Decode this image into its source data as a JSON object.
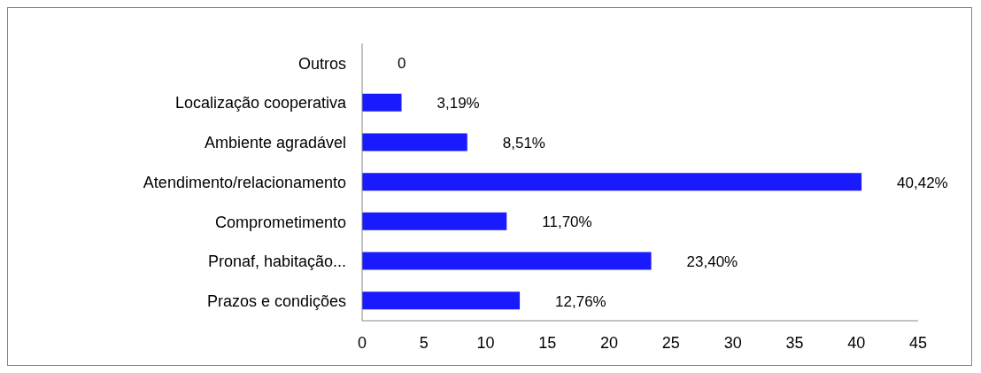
{
  "chart_data": {
    "type": "bar",
    "orientation": "horizontal",
    "categories": [
      "Outros",
      "Localização cooperativa",
      "Ambiente agradável",
      "Atendimento/relacionamento",
      "Comprometimento ",
      "Pronaf, habitação...",
      "Prazos e condições"
    ],
    "values": [
      0,
      3.19,
      8.51,
      40.42,
      11.7,
      23.4,
      12.76
    ],
    "value_labels": [
      "0",
      "3,19%",
      "8,51%",
      "40,42%",
      "11,70%",
      "23,40%",
      "12,76%"
    ],
    "color": "#1a1aff",
    "xlim": [
      0,
      45
    ],
    "xticks": [
      0,
      5,
      10,
      15,
      20,
      25,
      30,
      35,
      40,
      45
    ],
    "grid": false
  }
}
